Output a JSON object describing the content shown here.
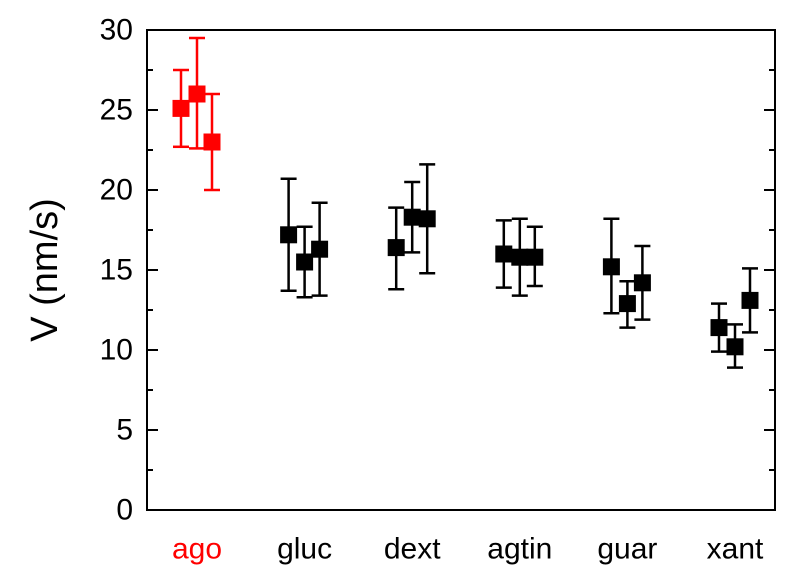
{
  "chart_data": {
    "type": "scatter",
    "ylabel": "V (nm/s)",
    "xlabel": "",
    "title": "",
    "ylim": [
      0,
      30
    ],
    "yticks": [
      0,
      5,
      10,
      15,
      20,
      25,
      30
    ],
    "categories": [
      "ago",
      "gluc",
      "dext",
      "agtin",
      "guar",
      "xant"
    ],
    "highlight_category": "ago",
    "grid": false,
    "colors": {
      "highlight": "#ff0000",
      "default": "#000000"
    },
    "series": [
      {
        "category": "ago",
        "points": [
          {
            "y": 25.1,
            "low": 22.7,
            "high": 27.5
          },
          {
            "y": 26.0,
            "low": 22.6,
            "high": 29.5
          },
          {
            "y": 23.0,
            "low": 20.0,
            "high": 26.0
          }
        ]
      },
      {
        "category": "gluc",
        "points": [
          {
            "y": 17.2,
            "low": 13.7,
            "high": 20.7
          },
          {
            "y": 15.5,
            "low": 13.3,
            "high": 17.7
          },
          {
            "y": 16.3,
            "low": 13.4,
            "high": 19.2
          }
        ]
      },
      {
        "category": "dext",
        "points": [
          {
            "y": 16.4,
            "low": 13.8,
            "high": 18.9
          },
          {
            "y": 18.3,
            "low": 16.1,
            "high": 20.5
          },
          {
            "y": 18.2,
            "low": 14.8,
            "high": 21.6
          }
        ]
      },
      {
        "category": "agtin",
        "points": [
          {
            "y": 16.0,
            "low": 13.9,
            "high": 18.1
          },
          {
            "y": 15.8,
            "low": 13.4,
            "high": 18.2
          },
          {
            "y": 15.8,
            "low": 14.0,
            "high": 17.7
          }
        ]
      },
      {
        "category": "guar",
        "points": [
          {
            "y": 15.2,
            "low": 12.3,
            "high": 18.2
          },
          {
            "y": 12.9,
            "low": 11.4,
            "high": 14.3
          },
          {
            "y": 14.2,
            "low": 11.9,
            "high": 16.5
          }
        ]
      },
      {
        "category": "xant",
        "points": [
          {
            "y": 11.4,
            "low": 9.9,
            "high": 12.9
          },
          {
            "y": 10.2,
            "low": 8.9,
            "high": 11.6
          },
          {
            "y": 13.1,
            "low": 11.1,
            "high": 15.1
          }
        ]
      }
    ]
  }
}
